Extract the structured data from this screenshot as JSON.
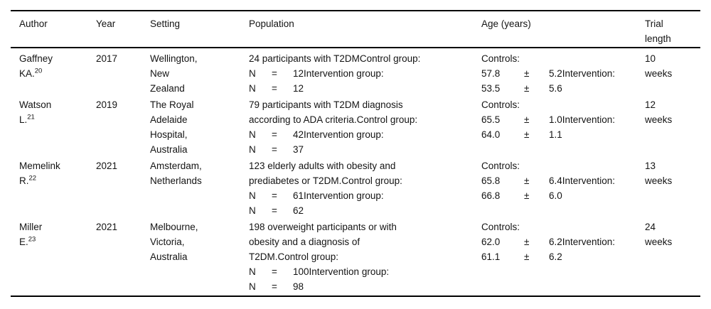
{
  "table": {
    "headers": [
      "Author",
      "Year",
      "Setting",
      "Population",
      "Age (years)",
      "Trial length"
    ],
    "rows": [
      {
        "author": {
          "line1": "Gaffney",
          "line2": "KA.",
          "ref": "20"
        },
        "year": "2017",
        "setting": [
          "Wellington,",
          "New",
          "Zealand"
        ],
        "population": [
          {
            "text": "24 participants with T2DMControl group:"
          },
          {
            "n": "N",
            "eq": "=",
            "rest": "12Intervention group:"
          },
          {
            "n": "N",
            "eq": "=",
            "rest": "12"
          }
        ],
        "age": [
          {
            "text": "Controls:"
          },
          {
            "v": "57.8",
            "pm": "±",
            "rest": "5.2Intervention:"
          },
          {
            "v": "53.5",
            "pm": "±",
            "rest": "5.6"
          }
        ],
        "trial": [
          "10",
          "weeks"
        ]
      },
      {
        "author": {
          "line1": "Watson",
          "line2": "L.",
          "ref": "21"
        },
        "year": "2019",
        "setting": [
          "The Royal",
          "Adelaide",
          "Hospital,",
          "Australia"
        ],
        "population": [
          {
            "text": "79 participants with T2DM diagnosis"
          },
          {
            "text": "according to ADA criteria.Control group:"
          },
          {
            "n": "N",
            "eq": "=",
            "rest": "42Intervention group:"
          },
          {
            "n": "N",
            "eq": "=",
            "rest": "37"
          }
        ],
        "age": [
          {
            "text": "Controls:"
          },
          {
            "v": "65.5",
            "pm": "±",
            "rest": "1.0Intervention:"
          },
          {
            "v": "64.0",
            "pm": "±",
            "rest": "1.1"
          }
        ],
        "trial": [
          "12",
          "weeks"
        ]
      },
      {
        "author": {
          "line1": "Memelink",
          "line2": "R.",
          "ref": "22"
        },
        "year": "2021",
        "setting": [
          "Amsterdam,",
          "Netherlands"
        ],
        "population": [
          {
            "text": "123 elderly adults with obesity and"
          },
          {
            "text": "prediabetes or T2DM.Control group:"
          },
          {
            "n": "N",
            "eq": "=",
            "rest": "61Intervention group:"
          },
          {
            "n": "N",
            "eq": "=",
            "rest": "62"
          }
        ],
        "age": [
          {
            "text": "Controls:"
          },
          {
            "v": "65.8",
            "pm": "±",
            "rest": "6.4Intervention:"
          },
          {
            "v": "66.8",
            "pm": "±",
            "rest": "6.0"
          }
        ],
        "trial": [
          "13",
          "weeks"
        ]
      },
      {
        "author": {
          "line1": "Miller",
          "line2": "E.",
          "ref": "23"
        },
        "year": "2021",
        "setting": [
          "Melbourne,",
          "Victoria,",
          "Australia"
        ],
        "population": [
          {
            "text": "198 overweight participants or with"
          },
          {
            "text": "obesity and a diagnosis of"
          },
          {
            "text": "T2DM.Control group:"
          },
          {
            "n": "N",
            "eq": "=",
            "rest": "100Intervention group:"
          },
          {
            "n": "N",
            "eq": "=",
            "rest": "98"
          }
        ],
        "age": [
          {
            "text": "Controls:"
          },
          {
            "v": "62.0",
            "pm": "±",
            "rest": "6.2Intervention:"
          },
          {
            "v": "61.1",
            "pm": "±",
            "rest": "6.2"
          }
        ],
        "trial": [
          "24",
          "weeks"
        ]
      }
    ]
  }
}
